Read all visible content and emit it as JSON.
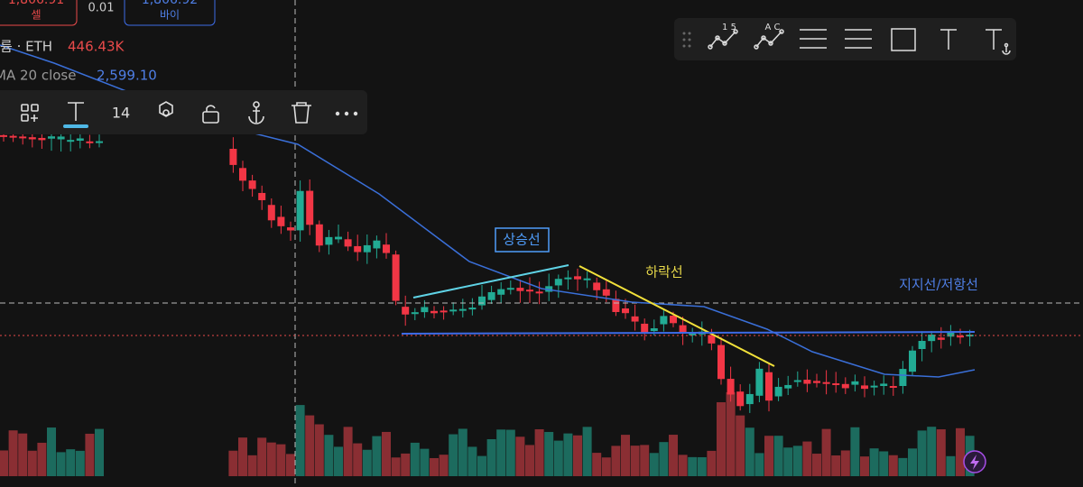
{
  "order_panel": {
    "sell_price": "1,806.91",
    "sell_label": "셀",
    "quantity": "0.01",
    "buy_price": "1,806.92",
    "buy_label": "바이"
  },
  "legend": {
    "symbol": "륨 · ETH",
    "volume": "446.43K",
    "ma_label": "MA 20 close",
    "ma_value": "2,599.10"
  },
  "text_toolbar": {
    "font_size": "14"
  },
  "drawing_toolbar": {
    "tool_1": "1 5",
    "tool_2": "A C"
  },
  "annotations": {
    "uptrend": "상승선",
    "downtrend": "하락선",
    "support_resistance": "지지선/저항선"
  }
}
